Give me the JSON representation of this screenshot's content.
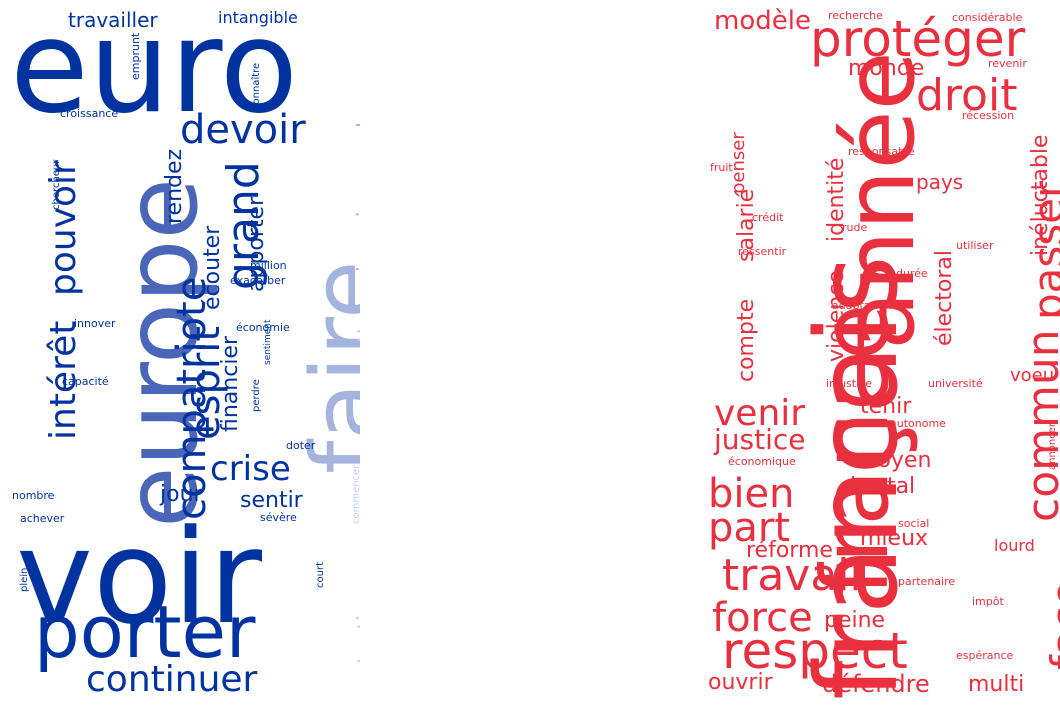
{
  "clouds": [
    {
      "id": "left",
      "words": [
        {
          "text": "euro",
          "color": "#0033A0"
        },
        {
          "text": "voir",
          "color": "#0033A0"
        },
        {
          "text": "europe",
          "color": "#4A66B8"
        },
        {
          "text": "faire",
          "color": "#A5B4DC"
        },
        {
          "text": "porter",
          "color": "#0033A0"
        },
        {
          "text": "continuer",
          "color": "#0033A0"
        },
        {
          "text": "devoir",
          "color": "#0033A0"
        },
        {
          "text": "grand",
          "color": "#0033A0"
        },
        {
          "text": "compatriote",
          "color": "#0033A0"
        },
        {
          "text": "esprit",
          "color": "#0033A0"
        },
        {
          "text": "intérêt",
          "color": "#0033A0"
        },
        {
          "text": "pouvoir",
          "color": "#0033A0"
        },
        {
          "text": "crise",
          "color": "#0033A0"
        },
        {
          "text": "sentir",
          "color": "#0033A0"
        },
        {
          "text": "jour",
          "color": "#0033A0"
        },
        {
          "text": "rendez",
          "color": "#0033A0"
        },
        {
          "text": "écouter",
          "color": "#0033A0"
        },
        {
          "text": "apporter",
          "color": "#0033A0"
        },
        {
          "text": "financier",
          "color": "#0033A0"
        },
        {
          "text": "travailler",
          "color": "#0033A0"
        },
        {
          "text": "intangible",
          "color": "#0033A0"
        },
        {
          "text": "donner",
          "color": "#A5B4DC"
        },
        {
          "text": "jamais",
          "color": "#A5B4DC"
        },
        {
          "text": "permettre",
          "color": "#C6D0EA"
        },
        {
          "text": "protection",
          "color": "#C6D0EA"
        },
        {
          "text": "emprunt",
          "color": "#0033A0"
        },
        {
          "text": "connaître",
          "color": "#0033A0"
        },
        {
          "text": "croissance",
          "color": "#0033A0"
        },
        {
          "text": "chercheur",
          "color": "#0033A0"
        },
        {
          "text": "million",
          "color": "#0033A0"
        },
        {
          "text": "exacerber",
          "color": "#0033A0"
        },
        {
          "text": "innover",
          "color": "#0033A0"
        },
        {
          "text": "sentiment",
          "color": "#0033A0"
        },
        {
          "text": "économie",
          "color": "#0033A0"
        },
        {
          "text": "capacité",
          "color": "#0033A0"
        },
        {
          "text": "perdre",
          "color": "#0033A0"
        },
        {
          "text": "doter",
          "color": "#0033A0"
        },
        {
          "text": "commencer",
          "color": "#C6D0EA"
        },
        {
          "text": "nombre",
          "color": "#0033A0"
        },
        {
          "text": "achever",
          "color": "#0033A0"
        },
        {
          "text": "sévère",
          "color": "#0033A0"
        },
        {
          "text": "plein",
          "color": "#0033A0"
        },
        {
          "text": "court",
          "color": "#0033A0"
        }
      ]
    },
    {
      "id": "right",
      "words": [
        {
          "text": "français",
          "color": "#E8303F"
        },
        {
          "text": "france",
          "color": "#E8303F"
        },
        {
          "text": "année",
          "color": "#E8303F"
        },
        {
          "text": "protéger",
          "color": "#E8303F"
        },
        {
          "text": "droit",
          "color": "#E8303F"
        },
        {
          "text": "modèle",
          "color": "#E8303F"
        },
        {
          "text": "monde",
          "color": "#E8303F"
        },
        {
          "text": "pays",
          "color": "#E8303F"
        },
        {
          "text": "passer",
          "color": "#E8303F"
        },
        {
          "text": "inéluctable",
          "color": "#E8303F"
        },
        {
          "text": "identité",
          "color": "#E8303F"
        },
        {
          "text": "violence",
          "color": "#E8303F"
        },
        {
          "text": "électoral",
          "color": "#E8303F"
        },
        {
          "text": "salarié",
          "color": "#E8303F"
        },
        {
          "text": "compte",
          "color": "#E8303F"
        },
        {
          "text": "penser",
          "color": "#E8303F"
        },
        {
          "text": "venir",
          "color": "#E8303F"
        },
        {
          "text": "justice",
          "color": "#E8303F"
        },
        {
          "text": "tenir",
          "color": "#E8303F"
        },
        {
          "text": "moyen",
          "color": "#E8303F"
        },
        {
          "text": "commun",
          "color": "#E8303F"
        },
        {
          "text": "voeu",
          "color": "#E8303F"
        },
        {
          "text": "bien",
          "color": "#E8303F"
        },
        {
          "text": "brutal",
          "color": "#E8303F"
        },
        {
          "text": "part",
          "color": "#E8303F"
        },
        {
          "text": "mieux",
          "color": "#E8303F"
        },
        {
          "text": "réforme",
          "color": "#E8303F"
        },
        {
          "text": "travail",
          "color": "#E8303F"
        },
        {
          "text": "face",
          "color": "#E8303F"
        },
        {
          "text": "force",
          "color": "#E8303F"
        },
        {
          "text": "peine",
          "color": "#E8303F"
        },
        {
          "text": "respect",
          "color": "#E8303F"
        },
        {
          "text": "ouvrir",
          "color": "#E8303F"
        },
        {
          "text": "défendre",
          "color": "#E8303F"
        },
        {
          "text": "multi",
          "color": "#E8303F"
        },
        {
          "text": "lourd",
          "color": "#E8303F"
        },
        {
          "text": "recherche",
          "color": "#E8303F"
        },
        {
          "text": "considérable",
          "color": "#E8303F"
        },
        {
          "text": "revenir",
          "color": "#E8303F"
        },
        {
          "text": "récession",
          "color": "#E8303F"
        },
        {
          "text": "responsable",
          "color": "#E8303F"
        },
        {
          "text": "fruit",
          "color": "#E8303F"
        },
        {
          "text": "crédit",
          "color": "#E8303F"
        },
        {
          "text": "rude",
          "color": "#E8303F"
        },
        {
          "text": "utiliser",
          "color": "#E8303F"
        },
        {
          "text": "ressentir",
          "color": "#E8303F"
        },
        {
          "text": "durée",
          "color": "#E8303F"
        },
        {
          "text": "adaptation",
          "color": "#E8303F"
        },
        {
          "text": "injustice",
          "color": "#E8303F"
        },
        {
          "text": "université",
          "color": "#E8303F"
        },
        {
          "text": "autonome",
          "color": "#E8303F"
        },
        {
          "text": "annoncer",
          "color": "#E8303F"
        },
        {
          "text": "économique",
          "color": "#E8303F"
        },
        {
          "text": "social",
          "color": "#E8303F"
        },
        {
          "text": "partenaire",
          "color": "#E8303F"
        },
        {
          "text": "impôt",
          "color": "#E8303F"
        },
        {
          "text": "espérance",
          "color": "#E8303F"
        }
      ]
    }
  ]
}
